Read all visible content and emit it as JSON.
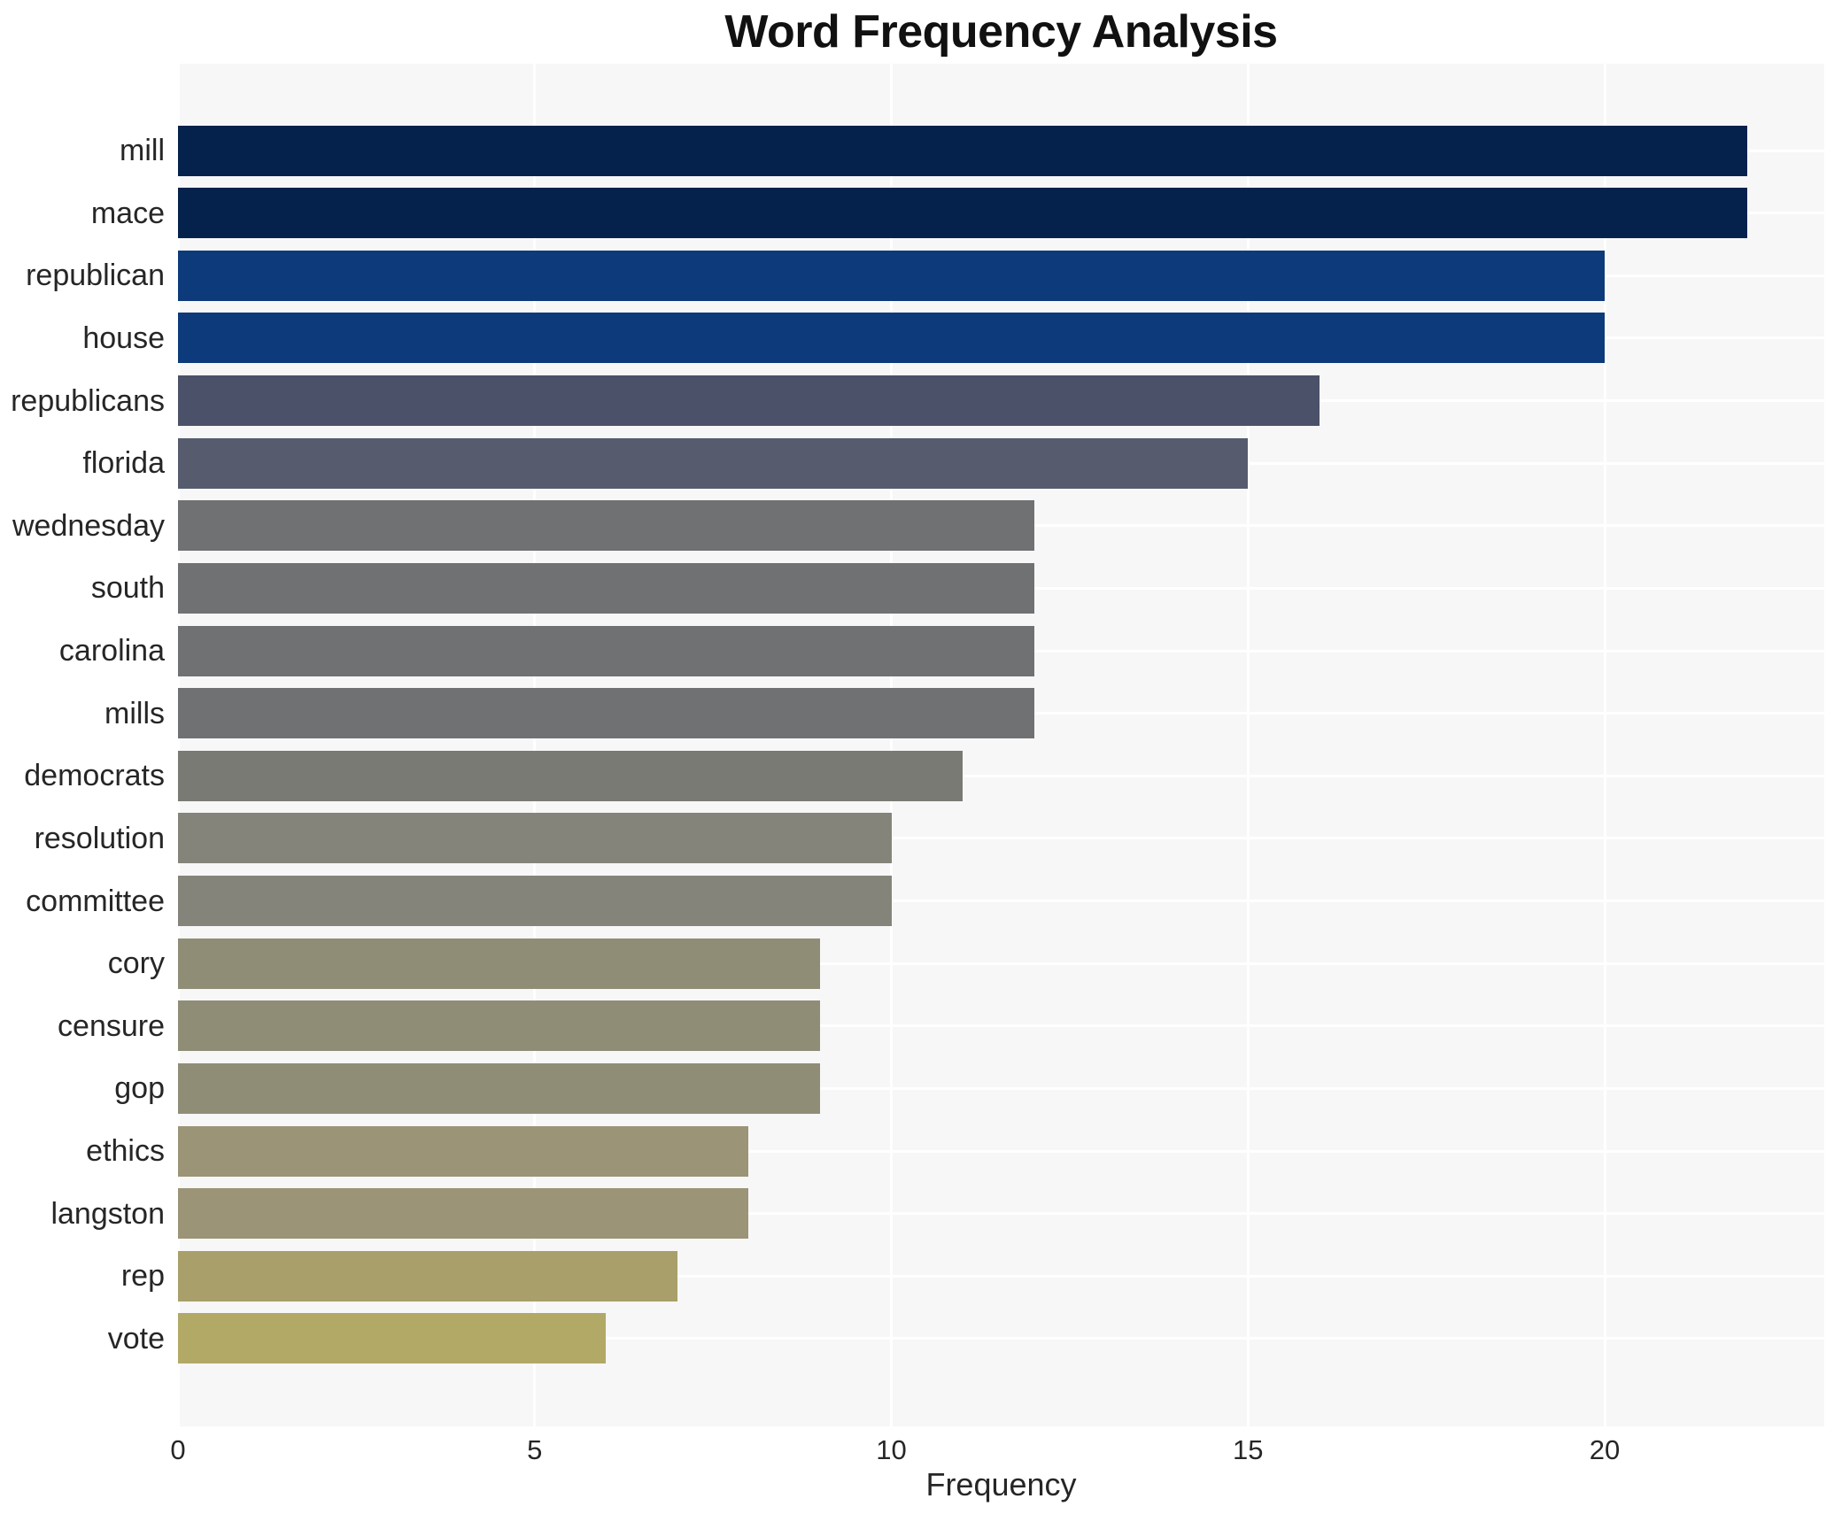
{
  "chart_data": {
    "type": "bar",
    "orientation": "horizontal",
    "title": "Word Frequency Analysis",
    "xlabel": "Frequency",
    "ylabel": "",
    "xlim": [
      0,
      23.1
    ],
    "xticks": [
      0,
      5,
      10,
      15,
      20
    ],
    "grid": true,
    "grid_color": "#ffffff",
    "plot_background": "#f7f7f8",
    "page_background": "#ffffff",
    "legend": false,
    "categories": [
      "mill",
      "mace",
      "republican",
      "house",
      "republicans",
      "florida",
      "wednesday",
      "south",
      "carolina",
      "mills",
      "democrats",
      "resolution",
      "committee",
      "cory",
      "censure",
      "gop",
      "ethics",
      "langston",
      "rep",
      "vote"
    ],
    "values": [
      22,
      22,
      20,
      20,
      16,
      15,
      12,
      12,
      12,
      12,
      11,
      10,
      10,
      9,
      9,
      9,
      8,
      8,
      7,
      6
    ],
    "bar_colors": [
      "#04224c",
      "#04224c",
      "#0c3a7a",
      "#0c3a7a",
      "#4a5168",
      "#565c6e",
      "#6f7173",
      "#6f7173",
      "#6f7173",
      "#6f7173",
      "#7a7a74",
      "#85847a",
      "#85847a",
      "#908d77",
      "#908d77",
      "#908d77",
      "#9b9476",
      "#9b9476",
      "#a89f6a",
      "#b2a967"
    ]
  }
}
